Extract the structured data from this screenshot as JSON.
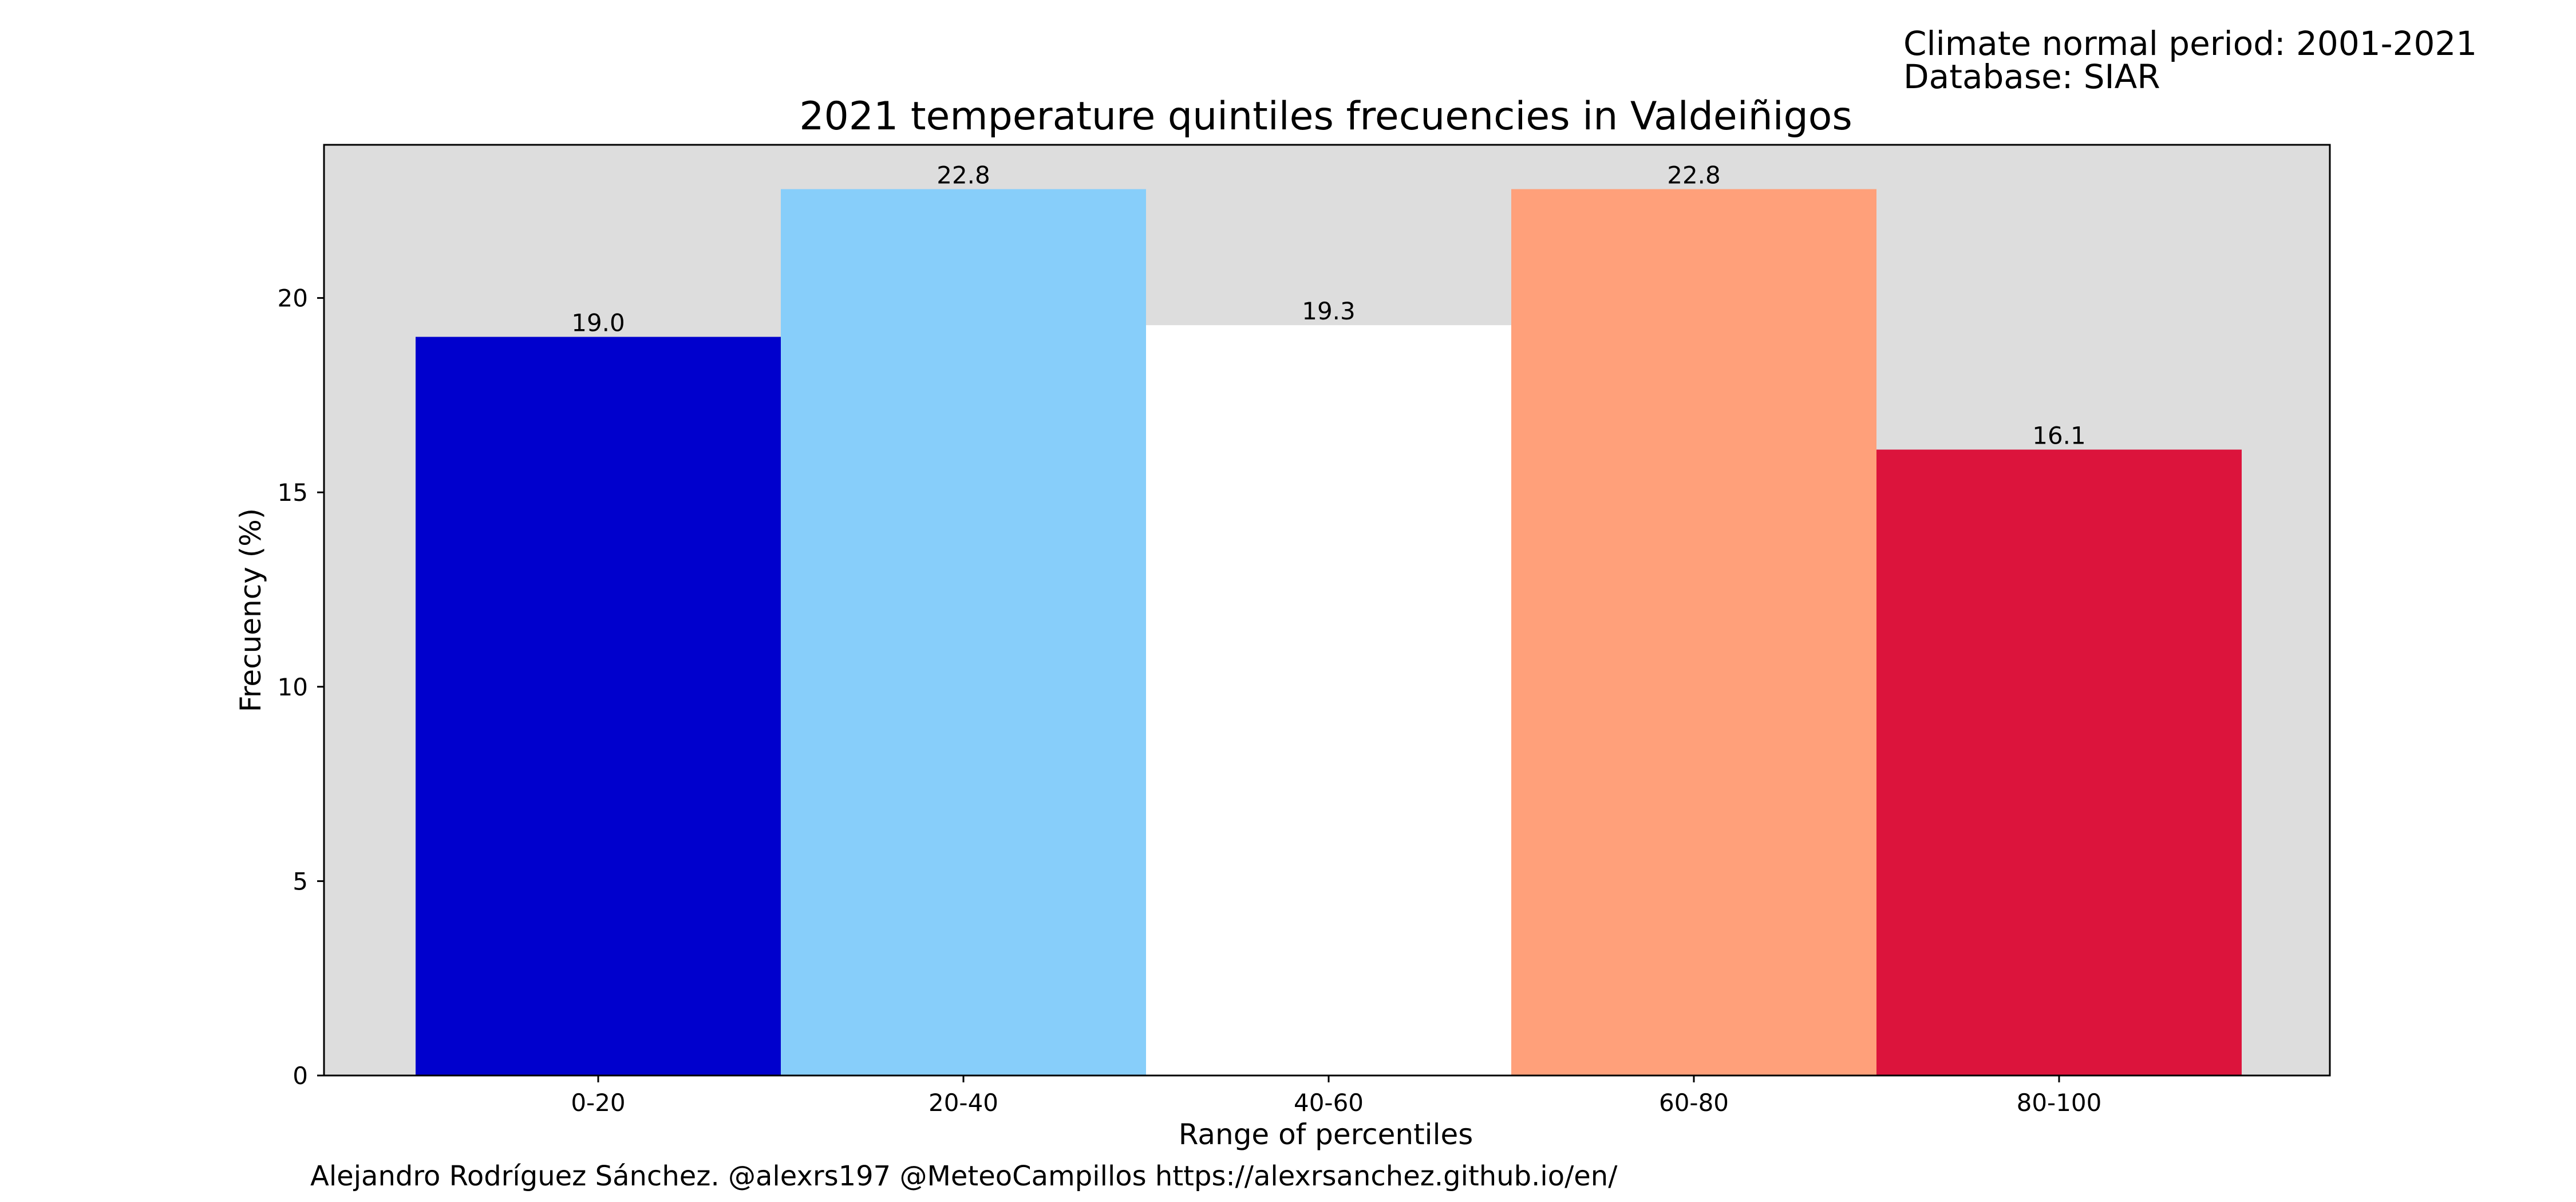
{
  "header_notes": {
    "period": "Climate normal period: 2001-2021",
    "database": "Database: SIAR"
  },
  "credits": "Alejandro Rodríguez Sánchez. @alexrs197 @MeteoCampillos   https://alexrsanchez.github.io/en/",
  "chart_data": {
    "type": "bar",
    "title": "2021 temperature quintiles frecuencies in Valdeiñigos",
    "xlabel": "Range of percentiles",
    "ylabel": "Frecuency (%)",
    "categories": [
      "0-20",
      "20-40",
      "40-60",
      "60-80",
      "80-100"
    ],
    "values": [
      19.0,
      22.8,
      19.3,
      22.8,
      16.1
    ],
    "value_labels": [
      "19.0",
      "22.8",
      "19.3",
      "22.8",
      "16.1"
    ],
    "bar_colors": [
      "#0000cd",
      "#87cefa",
      "#ffffff",
      "#ffa07a",
      "#dc143c"
    ],
    "ylim": [
      0,
      23.94
    ],
    "yticks": [
      0,
      5,
      10,
      15,
      20
    ],
    "plot_background": "#dddddd",
    "grid": false,
    "legend": "none"
  }
}
